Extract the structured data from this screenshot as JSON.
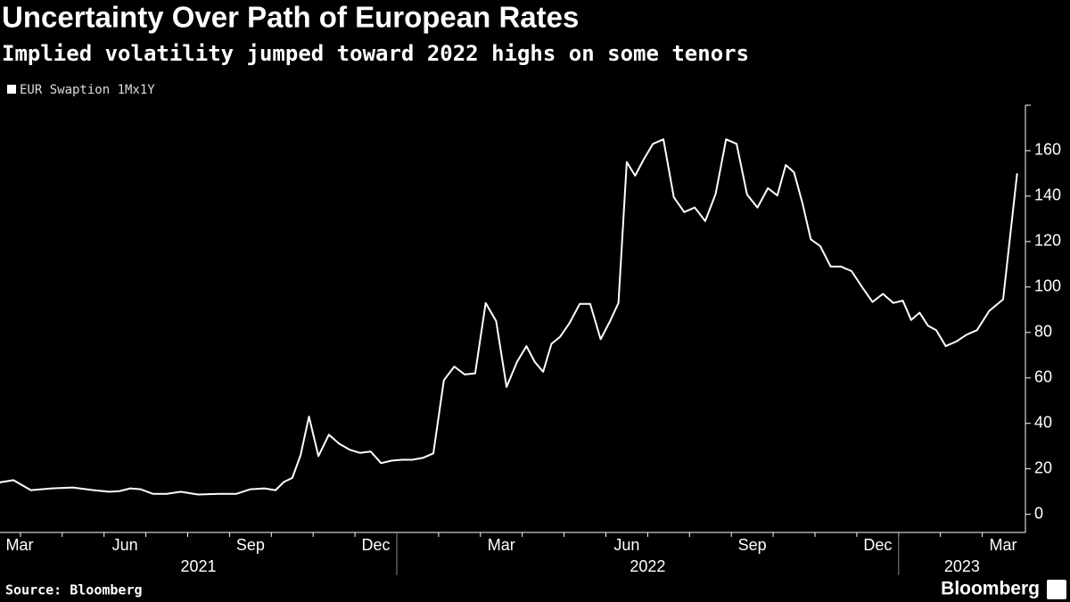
{
  "chart_data": {
    "type": "line",
    "title": "Uncertainty Over Path of European Rates",
    "subtitle": "Implied volatility jumped toward 2022 highs on some tenors",
    "source": "Source: Bloomberg",
    "logo": "Bloomberg",
    "series": [
      {
        "name": "EUR Swaption 1Mx1Y",
        "color": "#ffffff",
        "x": [
          "2021-03",
          "2021-03",
          "2021-03",
          "2021-04",
          "2021-04",
          "2021-05",
          "2021-05",
          "2021-06",
          "2021-06",
          "2021-06",
          "2021-06",
          "2021-07",
          "2021-07",
          "2021-07",
          "2021-08",
          "2021-08",
          "2021-09",
          "2021-09",
          "2021-09",
          "2021-10",
          "2021-10",
          "2021-10",
          "2021-10",
          "2021-10",
          "2021-11",
          "2021-11",
          "2021-11",
          "2021-11",
          "2021-12",
          "2021-12",
          "2021-12",
          "2021-12",
          "2022-01",
          "2022-01",
          "2022-01",
          "2022-01",
          "2022-02",
          "2022-02",
          "2022-02",
          "2022-02",
          "2022-03",
          "2022-03",
          "2022-03",
          "2022-03",
          "2022-04",
          "2022-04",
          "2022-04",
          "2022-04",
          "2022-04",
          "2022-05",
          "2022-05",
          "2022-05",
          "2022-05",
          "2022-06",
          "2022-06",
          "2022-06",
          "2022-06",
          "2022-06",
          "2022-07",
          "2022-07",
          "2022-07",
          "2022-07",
          "2022-08",
          "2022-08",
          "2022-08",
          "2022-08",
          "2022-09",
          "2022-09",
          "2022-09",
          "2022-09",
          "2022-10",
          "2022-10",
          "2022-10",
          "2022-10",
          "2022-10",
          "2022-11",
          "2022-11",
          "2022-11",
          "2022-11",
          "2022-12",
          "2022-12",
          "2022-12",
          "2022-12",
          "2023-01",
          "2023-01",
          "2023-01",
          "2023-01",
          "2023-01",
          "2023-02",
          "2023-02",
          "2023-02",
          "2023-02",
          "2023-03",
          "2023-03",
          "2023-03"
        ],
        "values": [
          14.6,
          14,
          15,
          10.6,
          11.4,
          11.8,
          10.6,
          9.9,
          10.2,
          11.4,
          11,
          9,
          9,
          9.9,
          8.7,
          9,
          9,
          11,
          11.4,
          10.6,
          14.2,
          16,
          26,
          43,
          25.6,
          35,
          31,
          28.4,
          27,
          27.6,
          22.5,
          23.6,
          24,
          24,
          24.8,
          26.8,
          59,
          65,
          61.5,
          62,
          93,
          85,
          56,
          67,
          74,
          67,
          62.7,
          75,
          78,
          84,
          92.6,
          92.6,
          77,
          85,
          93,
          155,
          149,
          156,
          163,
          165,
          139.5,
          133,
          135,
          129,
          141,
          165,
          163,
          140.7,
          135,
          143.5,
          140.3,
          153.7,
          150.5,
          137,
          121,
          118,
          109,
          109,
          107,
          100,
          93.4,
          97,
          93,
          94,
          85.5,
          88.7,
          83,
          81,
          74,
          76,
          79,
          81,
          89.5,
          94.6,
          150
        ]
      }
    ],
    "xlim": [
      "2021-03",
      "2023-03"
    ],
    "xticks": [
      {
        "value": "2021-03",
        "label": "Mar"
      },
      {
        "value": "2021-06",
        "label": "Jun"
      },
      {
        "value": "2021-09",
        "label": "Sep"
      },
      {
        "value": "2021-12",
        "label": "Dec"
      },
      {
        "value": "2022-03",
        "label": "Mar"
      },
      {
        "value": "2022-06",
        "label": "Jun"
      },
      {
        "value": "2022-09",
        "label": "Sep"
      },
      {
        "value": "2022-12",
        "label": "Dec"
      },
      {
        "value": "2023-03",
        "label": "Mar"
      }
    ],
    "years": [
      "2021",
      "2022",
      "2023"
    ],
    "ylim": [
      -8,
      180
    ],
    "yticks": [
      0,
      20,
      40,
      60,
      80,
      100,
      120,
      140,
      160
    ],
    "grid": false
  }
}
